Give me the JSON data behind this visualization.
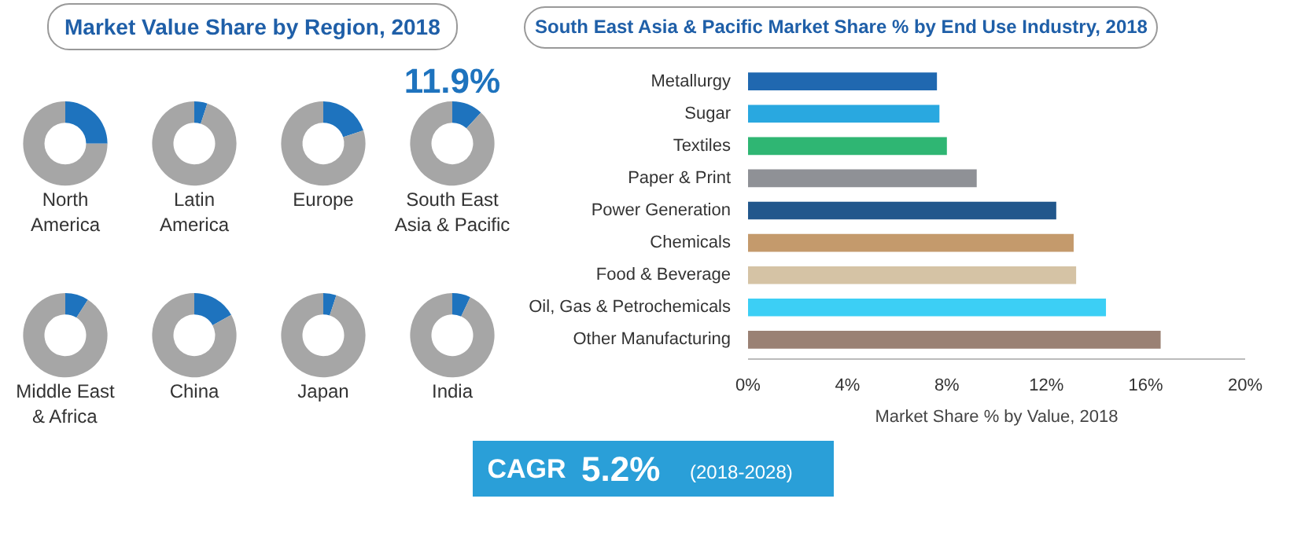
{
  "chart_data": [
    {
      "type": "other",
      "title": "Market Value Share by Region, 2018"
    },
    {
      "type": "donut",
      "title": "North America",
      "categories": [
        null,
        null
      ],
      "values": [
        25,
        75
      ],
      "colors": [
        "#1e73be",
        "#a6a6a6"
      ]
    },
    {
      "type": "donut",
      "title": "Latin America",
      "categories": [
        null,
        null
      ],
      "values": [
        5,
        95
      ],
      "colors": [
        "#1e73be",
        "#a6a6a6"
      ]
    },
    {
      "type": "donut",
      "title": "Europe",
      "categories": [
        null,
        null
      ],
      "values": [
        20,
        80
      ],
      "colors": [
        "#1e73be",
        "#a6a6a6"
      ]
    },
    {
      "type": "donut",
      "title": "South East Asia & Pacific",
      "categories": [
        null,
        null
      ],
      "values": [
        11.9,
        88.1
      ],
      "value_labels": [
        "11.9%",
        null
      ],
      "colors": [
        "#1e73be",
        "#a6a6a6"
      ]
    },
    {
      "type": "donut",
      "title": "Middle East & Africa",
      "categories": [
        null,
        null
      ],
      "values": [
        9,
        91
      ],
      "colors": [
        "#1e73be",
        "#a6a6a6"
      ]
    },
    {
      "type": "donut",
      "title": "China",
      "categories": [
        null,
        null
      ],
      "values": [
        17,
        83
      ],
      "colors": [
        "#1e73be",
        "#a6a6a6"
      ]
    },
    {
      "type": "donut",
      "title": "Japan",
      "categories": [
        null,
        null
      ],
      "values": [
        5,
        95
      ],
      "colors": [
        "#1e73be",
        "#a6a6a6"
      ]
    },
    {
      "type": "donut",
      "title": "India",
      "categories": [
        null,
        null
      ],
      "values": [
        7,
        93
      ],
      "colors": [
        "#1e73be",
        "#a6a6a6"
      ]
    },
    {
      "type": "bar",
      "orientation": "horizontal",
      "title": "South East Asia & Pacific Market Share % by End Use Industry, 2018",
      "xlabel": "Market Share % by Value, 2018",
      "categories": [
        "Metallurgy",
        "Sugar",
        "Textiles",
        "Paper & Print",
        "Power Generation",
        "Chemicals",
        "Food & Beverage",
        "Oil, Gas & Petrochemicals",
        "Other Manufacturing"
      ],
      "values": [
        7.6,
        7.7,
        8.0,
        9.2,
        12.4,
        13.1,
        13.2,
        14.4,
        16.6
      ],
      "colors": [
        "#2068b0",
        "#29a8e0",
        "#2fb673",
        "#8f9196",
        "#22578c",
        "#c49a6c",
        "#d5c3a5",
        "#3ccff5",
        "#9a8174"
      ],
      "xlim": [
        0,
        20
      ],
      "xticks": [
        {
          "value": 0,
          "label": "0%"
        },
        {
          "value": 4,
          "label": "4%"
        },
        {
          "value": 8,
          "label": "8%"
        },
        {
          "value": 12,
          "label": "12%"
        },
        {
          "value": 16,
          "label": "16%"
        },
        {
          "value": 20,
          "label": "20%"
        }
      ],
      "grid": false
    },
    {
      "type": "other",
      "title": "CAGR 5.2%",
      "subtitle": "(2018-2028)"
    }
  ]
}
